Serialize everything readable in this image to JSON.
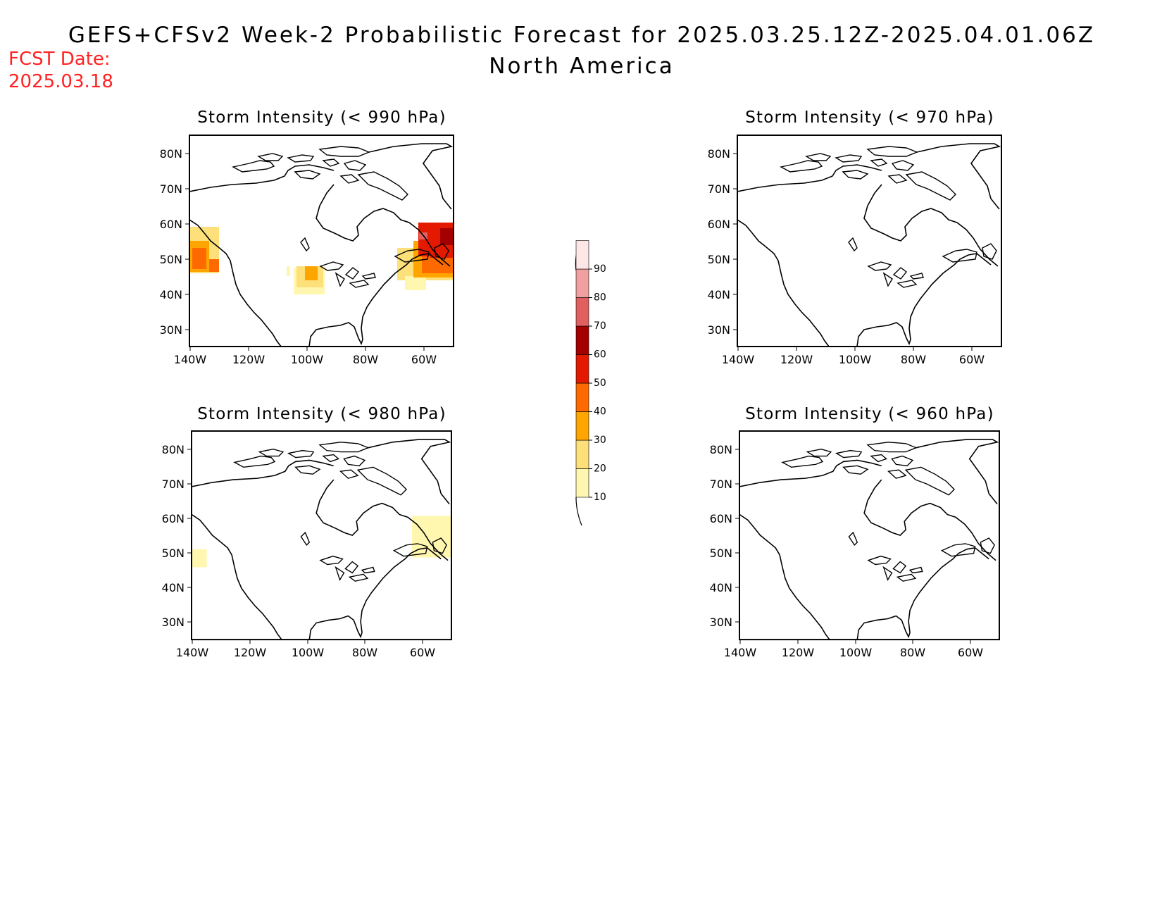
{
  "header": {
    "title": "GEFS+CFSv2 Week-2 Probabilistic Forecast for 2025.03.25.12Z-2025.04.01.06Z",
    "subtitle": "North America",
    "fcst_label": "FCST Date:",
    "fcst_date": "2025.03.18"
  },
  "axes": {
    "lat_ticks": [
      "80N",
      "70N",
      "60N",
      "50N",
      "40N",
      "30N"
    ],
    "lon_ticks": [
      "140W",
      "120W",
      "100W",
      "80W",
      "60W"
    ],
    "lat_range": [
      25,
      85
    ],
    "lon_range": [
      -140,
      -50
    ]
  },
  "colorbar": {
    "labels": [
      "10",
      "20",
      "30",
      "40",
      "50",
      "60",
      "70",
      "80",
      "90"
    ],
    "colors": [
      "#fff7b0",
      "#fde07a",
      "#ffa500",
      "#ff6a00",
      "#e31a00",
      "#a50000",
      "#e06060",
      "#f0a0a0",
      "#fde6e6"
    ]
  },
  "panels": [
    {
      "title": "Storm Intensity (< 990 hPa)",
      "highlight": "probability regions over Pacific NW coast, central Plains, and Atlantic Canada"
    },
    {
      "title": "Storm Intensity (< 980 hPa)"
    },
    {
      "title": "Storm Intensity (< 970 hPa)"
    },
    {
      "title": "Storm Intensity (< 960 hPa)"
    }
  ],
  "chart_data": {
    "type": "heatmap",
    "units": "%",
    "levels": [
      10,
      20,
      30,
      40,
      50,
      60,
      70,
      80,
      90
    ],
    "panels": [
      {
        "title": "Storm Intensity (< 990 hPa)",
        "regions": [
          {
            "name": "Pacific Northwest coast",
            "lon": [
              -140,
              -130
            ],
            "lat": [
              45,
              58
            ],
            "prob_range": [
              10,
              50
            ]
          },
          {
            "name": "Central Plains",
            "lon": [
              -107,
              -97
            ],
            "lat": [
              38,
              48
            ],
            "prob_range": [
              10,
              40
            ]
          },
          {
            "name": "Atlantic Canada / Labrador",
            "lon": [
              -70,
              -50
            ],
            "lat": [
              40,
              60
            ],
            "prob_range": [
              10,
              70
            ]
          }
        ]
      },
      {
        "title": "Storm Intensity (< 980 hPa)",
        "regions": [
          {
            "name": "Pacific coast",
            "lon": [
              -140,
              -135
            ],
            "lat": [
              45,
              51
            ],
            "prob_range": [
              10,
              20
            ]
          },
          {
            "name": "Labrador Sea coast",
            "lon": [
              -62,
              -50
            ],
            "lat": [
              46,
              60
            ],
            "prob_range": [
              10,
              20
            ]
          }
        ]
      },
      {
        "title": "Storm Intensity (< 970 hPa)",
        "regions": []
      },
      {
        "title": "Storm Intensity (< 960 hPa)",
        "regions": []
      }
    ]
  }
}
